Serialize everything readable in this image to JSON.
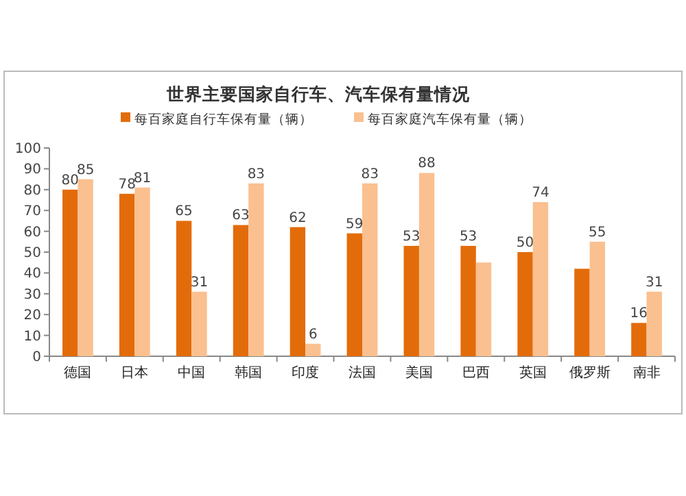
{
  "chart_data": {
    "type": "bar",
    "title": "世界主要国家自行车、汽车保有量情况",
    "categories": [
      "德国",
      "日本",
      "中国",
      "韩国",
      "印度",
      "法国",
      "美国",
      "巴西",
      "英国",
      "俄罗斯",
      "南非"
    ],
    "series": [
      {
        "name": "每百家庭自行车保有量（辆）",
        "color": "#e36c0a",
        "values": [
          80,
          78,
          65,
          63,
          62,
          59,
          53,
          53,
          50,
          42,
          16
        ],
        "value_labels": [
          "80",
          "78",
          "65",
          "63",
          "62",
          "59",
          "53",
          "53",
          "50",
          null,
          "16"
        ]
      },
      {
        "name": "每百家庭汽车保有量（辆）",
        "color": "#fac090",
        "values": [
          85,
          81,
          31,
          83,
          6,
          83,
          88,
          45,
          74,
          55,
          31
        ],
        "value_labels": [
          "85",
          "81",
          "31",
          "83",
          "6",
          "83",
          "88",
          null,
          "74",
          "55",
          "31"
        ]
      }
    ],
    "ylim": [
      0,
      100
    ],
    "yticks": [
      0,
      10,
      20,
      30,
      40,
      50,
      60,
      70,
      80,
      90,
      100
    ],
    "grid": false,
    "legend": "top"
  }
}
